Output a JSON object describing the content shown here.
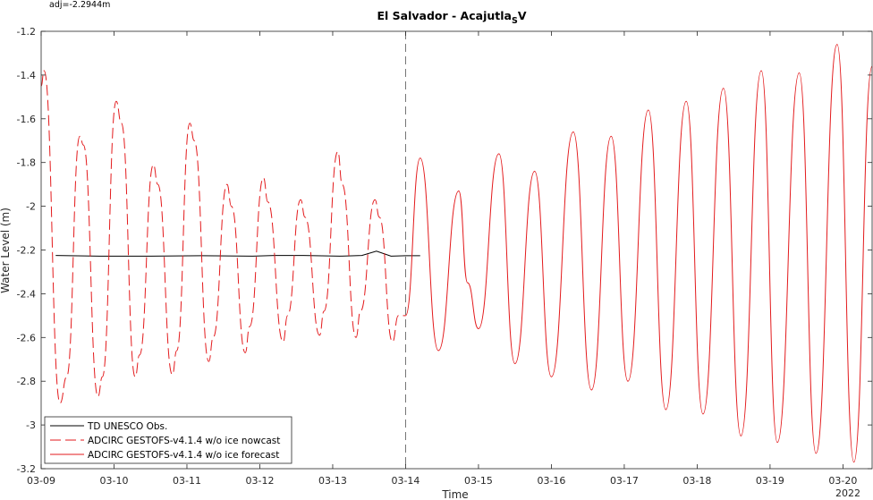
{
  "note": "adj=-2.2944m",
  "chart_data": {
    "type": "line",
    "title_main": "El Salvador - Acajutla",
    "title_sub": "S",
    "title_tail": "V",
    "xlabel": "Time",
    "ylabel": "Water Level (m)",
    "xlim": [
      0,
      11.4
    ],
    "ylim": [
      -3.2,
      -1.2
    ],
    "x_tick_labels": [
      "03-09",
      "03-10",
      "03-11",
      "03-12",
      "03-13",
      "03-14",
      "03-15",
      "03-16",
      "03-17",
      "03-18",
      "03-19",
      "03-20"
    ],
    "x_year_label": "2022",
    "y_ticks": [
      -1.2,
      -1.4,
      -1.6,
      -1.8,
      -2,
      -2.2,
      -2.4,
      -2.6,
      -2.8,
      -3,
      -3.2
    ],
    "nowcast_forecast_split": 5.0,
    "legend": {
      "position": "bottom-left"
    },
    "series": [
      {
        "name": "TD UNESCO Obs.",
        "color": "#000000",
        "style": "solid",
        "x": [
          0.2,
          0.8,
          1.5,
          2.2,
          2.9,
          3.2,
          3.6,
          4.1,
          4.4,
          4.6,
          4.8,
          5.0,
          5.2
        ],
        "values": [
          -2.225,
          -2.228,
          -2.228,
          -2.226,
          -2.228,
          -2.225,
          -2.225,
          -2.228,
          -2.225,
          -2.205,
          -2.228,
          -2.226,
          -2.226
        ]
      },
      {
        "name": "ADCIRC GESTOFS-v4.1.4 w/o ice nowcast",
        "color": "#e31a1c",
        "style": "dashed",
        "x": [
          0.0,
          0.04,
          0.26,
          0.35,
          0.53,
          0.58,
          0.78,
          0.84,
          1.03,
          1.1,
          1.29,
          1.35,
          1.54,
          1.6,
          1.8,
          1.86,
          2.04,
          2.1,
          2.3,
          2.36,
          2.55,
          2.61,
          2.8,
          2.86,
          3.05,
          3.11,
          3.32,
          3.38,
          3.56,
          3.62,
          3.82,
          3.88,
          4.07,
          4.13,
          4.32,
          4.38,
          4.58,
          4.64,
          4.82,
          4.9,
          5.0
        ],
        "values": [
          -1.45,
          -1.38,
          -2.9,
          -2.78,
          -1.68,
          -1.72,
          -2.87,
          -2.78,
          -1.52,
          -1.62,
          -2.78,
          -2.68,
          -1.81,
          -1.9,
          -2.77,
          -2.66,
          -1.62,
          -1.7,
          -2.71,
          -2.6,
          -1.9,
          -2.0,
          -2.67,
          -2.55,
          -1.87,
          -1.98,
          -2.62,
          -2.5,
          -1.97,
          -2.05,
          -2.59,
          -2.48,
          -1.75,
          -1.9,
          -2.6,
          -2.48,
          -1.97,
          -2.05,
          -2.62,
          -2.5,
          -2.5
        ]
      },
      {
        "name": "ADCIRC GESTOFS-v4.1.4 w/o ice forecast",
        "color": "#e31a1c",
        "style": "solid",
        "x": [
          5.0,
          5.2,
          5.45,
          5.73,
          5.85,
          6.0,
          6.28,
          6.5,
          6.77,
          7.0,
          7.3,
          7.55,
          7.82,
          8.05,
          8.33,
          8.57,
          8.85,
          9.08,
          9.36,
          9.6,
          9.88,
          10.1,
          10.4,
          10.63,
          10.92,
          11.15,
          11.4
        ],
        "values": [
          -2.5,
          -1.78,
          -2.66,
          -1.93,
          -2.35,
          -2.56,
          -1.76,
          -2.72,
          -1.84,
          -2.78,
          -1.66,
          -2.84,
          -1.68,
          -2.8,
          -1.56,
          -2.93,
          -1.52,
          -2.95,
          -1.46,
          -3.05,
          -1.38,
          -3.08,
          -1.39,
          -3.13,
          -1.26,
          -3.17,
          -1.36
        ]
      }
    ]
  }
}
